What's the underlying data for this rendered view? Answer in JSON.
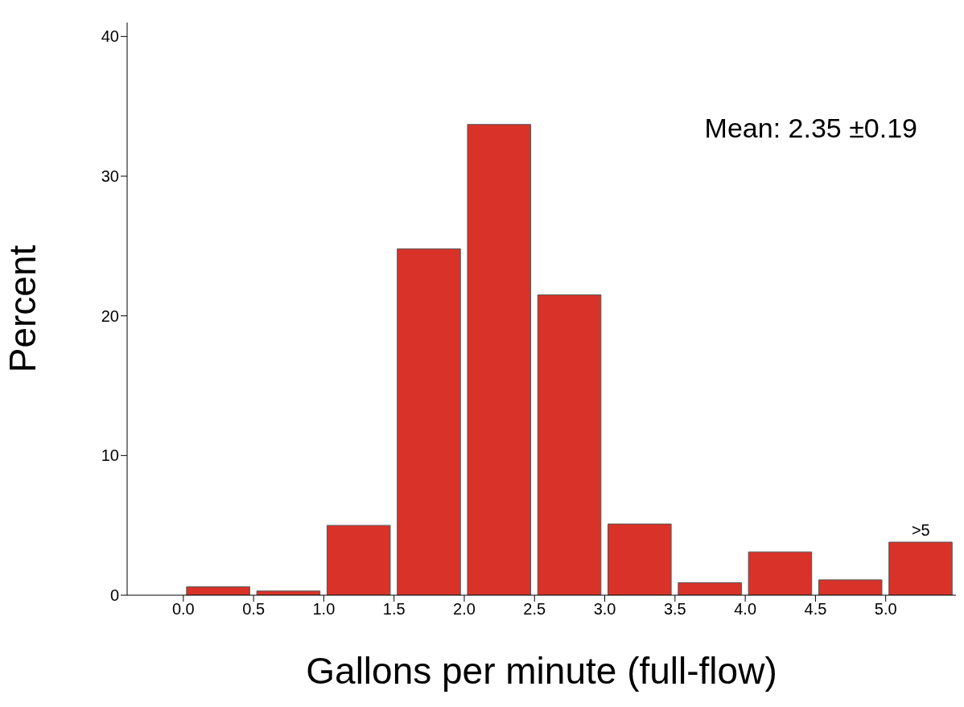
{
  "chart_data": {
    "type": "histogram",
    "xlabel": "Gallons per minute (full-flow)",
    "ylabel": "Percent",
    "bins": [
      0,
      0.5,
      1,
      1.5,
      2,
      2.5,
      3,
      3.5,
      4,
      4.5,
      5,
      5.5
    ],
    "values": [
      0.6,
      0.3,
      5.0,
      24.8,
      33.7,
      21.5,
      5.1,
      0.9,
      3.1,
      1.1,
      3.8
    ],
    "color": "#d93229",
    "xlim": [
      -0.4,
      5.5
    ],
    "xticks": [
      {
        "value": 0,
        "label": "0.0"
      },
      {
        "value": 0.5,
        "label": "0.5"
      },
      {
        "value": 1,
        "label": "1.0"
      },
      {
        "value": 1.5,
        "label": "1.5"
      },
      {
        "value": 2,
        "label": "2.0"
      },
      {
        "value": 2.5,
        "label": "2.5"
      },
      {
        "value": 3,
        "label": "3.0"
      },
      {
        "value": 3.5,
        "label": "3.5"
      },
      {
        "value": 4,
        "label": "4.0"
      },
      {
        "value": 4.5,
        "label": "4.5"
      },
      {
        "value": 5,
        "label": "5.0"
      }
    ],
    "ylim": [
      0,
      41
    ],
    "yticks": [
      0,
      10,
      20,
      30,
      40
    ],
    "grid": false,
    "legend": false,
    "annotations": [
      "Mean: 2.35 ±0.19",
      {
        "text": ">5",
        "x": 5.25,
        "y": 3.8
      }
    ]
  }
}
